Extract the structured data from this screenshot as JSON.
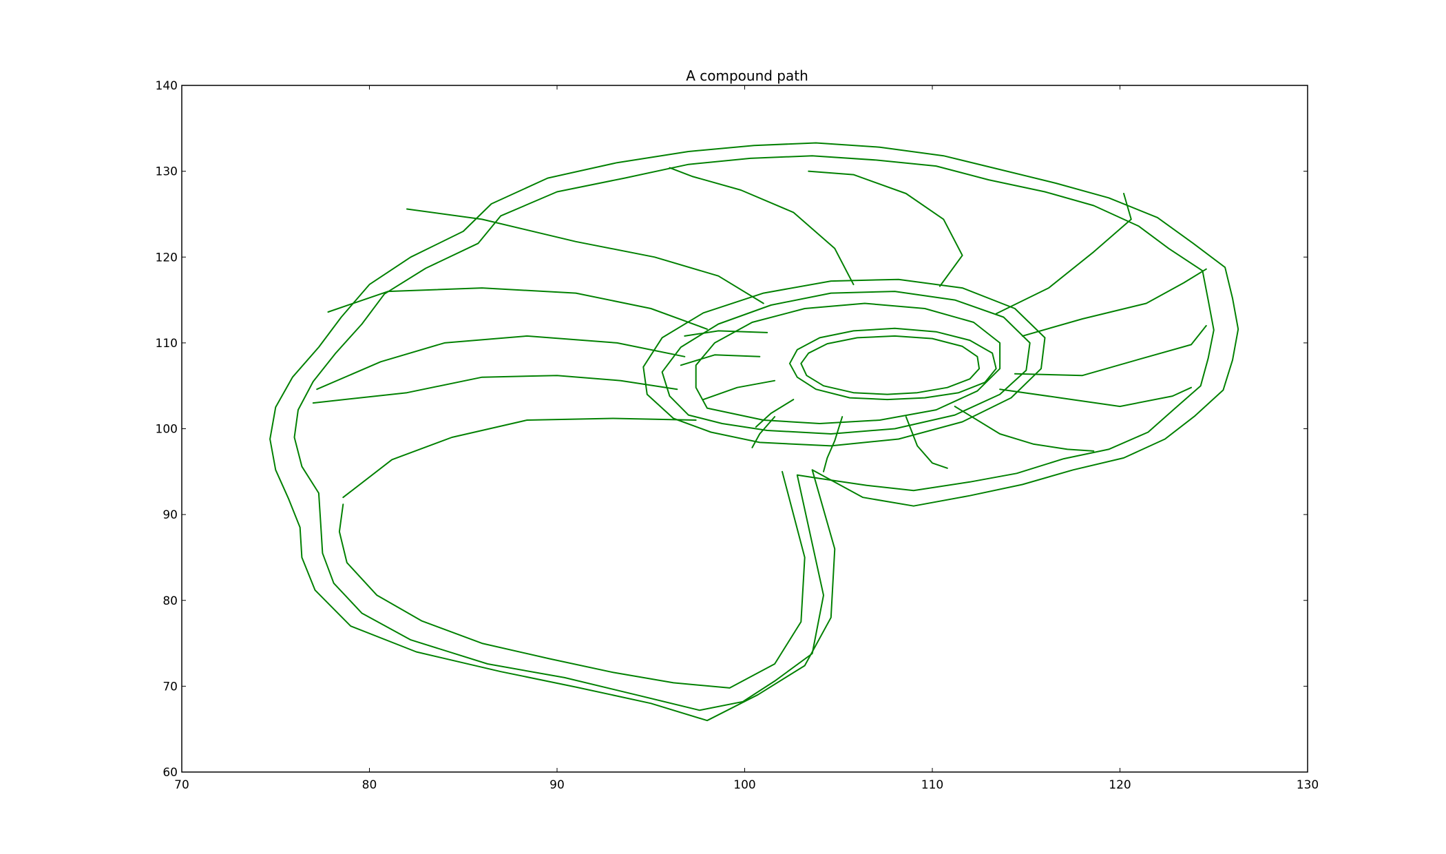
{
  "chart_data": {
    "type": "line",
    "title": "A compound path",
    "xlabel": "",
    "ylabel": "",
    "xlim": [
      70,
      130
    ],
    "ylim": [
      60,
      140
    ],
    "xticks": [
      70,
      80,
      90,
      100,
      110,
      120,
      130
    ],
    "yticks": [
      60,
      70,
      80,
      90,
      100,
      110,
      120,
      130,
      140
    ],
    "grid": false,
    "color": "#008000",
    "series": [
      {
        "points": [
          [
            102.8,
            94.6
          ],
          [
            104.2,
            80.6
          ],
          [
            103.6,
            73.8
          ],
          [
            101.6,
            70.6
          ],
          [
            99.9,
            68.2
          ],
          [
            97.6,
            67.2
          ],
          [
            94.2,
            69.0
          ],
          [
            90.4,
            71.0
          ],
          [
            86.3,
            72.6
          ],
          [
            82.2,
            75.4
          ],
          [
            79.6,
            78.5
          ],
          [
            78.1,
            82.0
          ],
          [
            77.5,
            85.5
          ],
          [
            77.4,
            89.0
          ],
          [
            77.3,
            92.5
          ],
          [
            76.4,
            95.6
          ],
          [
            76.0,
            99.0
          ],
          [
            76.2,
            102.2
          ],
          [
            77.0,
            105.5
          ],
          [
            78.2,
            108.8
          ],
          [
            79.6,
            112.2
          ],
          [
            80.8,
            115.7
          ],
          [
            83.0,
            118.7
          ],
          [
            85.8,
            121.6
          ],
          [
            87.0,
            124.8
          ],
          [
            90.0,
            127.6
          ],
          [
            93.6,
            129.2
          ],
          [
            97.0,
            130.8
          ],
          [
            100.3,
            131.5
          ],
          [
            103.6,
            131.8
          ],
          [
            107.0,
            131.3
          ],
          [
            110.2,
            130.6
          ],
          [
            113.0,
            129.0
          ],
          [
            116.0,
            127.6
          ],
          [
            118.6,
            126.0
          ],
          [
            121.0,
            123.6
          ],
          [
            122.6,
            121.0
          ],
          [
            124.4,
            118.4
          ],
          [
            124.7,
            115.0
          ],
          [
            125.0,
            111.5
          ],
          [
            124.7,
            108.2
          ],
          [
            124.3,
            105.0
          ],
          [
            122.9,
            102.3
          ],
          [
            121.5,
            99.6
          ],
          [
            119.4,
            97.6
          ],
          [
            117.0,
            96.5
          ],
          [
            114.5,
            94.8
          ],
          [
            112.0,
            93.8
          ],
          [
            109.0,
            92.8
          ],
          [
            106.5,
            93.4
          ],
          [
            104.0,
            94.2
          ],
          [
            102.8,
            94.6
          ]
        ]
      },
      {
        "points": [
          [
            103.6,
            95.2
          ],
          [
            104.8,
            86.0
          ],
          [
            104.6,
            78.0
          ],
          [
            103.2,
            72.4
          ],
          [
            100.7,
            69.0
          ],
          [
            98.0,
            66.0
          ],
          [
            95.0,
            68.0
          ],
          [
            91.0,
            69.9
          ],
          [
            87.0,
            71.7
          ],
          [
            82.5,
            74.0
          ],
          [
            79.0,
            77.0
          ],
          [
            77.1,
            81.2
          ],
          [
            76.4,
            85.0
          ],
          [
            76.3,
            88.5
          ],
          [
            75.7,
            91.8
          ],
          [
            75.0,
            95.2
          ],
          [
            74.7,
            98.8
          ],
          [
            75.0,
            102.5
          ],
          [
            75.9,
            106.0
          ],
          [
            77.3,
            109.5
          ],
          [
            78.5,
            113.0
          ],
          [
            80.0,
            116.8
          ],
          [
            82.2,
            120.0
          ],
          [
            85.0,
            123.0
          ],
          [
            86.5,
            126.2
          ],
          [
            89.5,
            129.2
          ],
          [
            93.2,
            131.0
          ],
          [
            97.0,
            132.3
          ],
          [
            100.5,
            133.0
          ],
          [
            103.8,
            133.3
          ],
          [
            107.2,
            132.8
          ],
          [
            110.6,
            131.8
          ],
          [
            113.6,
            130.2
          ],
          [
            116.6,
            128.6
          ],
          [
            119.4,
            126.9
          ],
          [
            122.0,
            124.6
          ],
          [
            123.9,
            121.6
          ],
          [
            125.6,
            118.8
          ],
          [
            126.0,
            115.2
          ],
          [
            126.3,
            111.6
          ],
          [
            126.0,
            108.0
          ],
          [
            125.5,
            104.5
          ],
          [
            124.0,
            101.5
          ],
          [
            122.4,
            98.8
          ],
          [
            120.2,
            96.6
          ],
          [
            117.5,
            95.2
          ],
          [
            114.8,
            93.5
          ],
          [
            112.0,
            92.2
          ],
          [
            109.0,
            91.0
          ],
          [
            106.3,
            92.0
          ],
          [
            103.6,
            95.2
          ]
        ]
      },
      {
        "points": [
          [
            102.0,
            95.0
          ],
          [
            103.2,
            85.0
          ],
          [
            103.0,
            77.5
          ],
          [
            101.6,
            72.6
          ],
          [
            99.2,
            69.8
          ],
          [
            96.2,
            70.4
          ],
          [
            93.0,
            71.6
          ],
          [
            89.6,
            73.2
          ],
          [
            86.0,
            75.0
          ],
          [
            82.8,
            77.6
          ],
          [
            80.4,
            80.6
          ],
          [
            78.8,
            84.4
          ],
          [
            78.4,
            88.0
          ],
          [
            78.6,
            91.2
          ]
        ]
      },
      {
        "points": [
          [
            97.0,
            101.6
          ],
          [
            96.0,
            103.8
          ],
          [
            95.6,
            106.6
          ],
          [
            96.6,
            109.5
          ],
          [
            98.6,
            112.2
          ],
          [
            101.4,
            114.4
          ],
          [
            104.6,
            115.8
          ],
          [
            108.0,
            116.0
          ],
          [
            111.2,
            115.0
          ],
          [
            113.8,
            113.0
          ],
          [
            115.2,
            110.0
          ],
          [
            115.0,
            106.8
          ],
          [
            113.6,
            104.0
          ],
          [
            111.2,
            101.6
          ],
          [
            108.0,
            100.0
          ],
          [
            104.6,
            99.4
          ],
          [
            101.2,
            99.8
          ],
          [
            98.8,
            100.6
          ],
          [
            97.0,
            101.6
          ]
        ]
      },
      {
        "points": [
          [
            96.2,
            101.2
          ],
          [
            94.8,
            104.0
          ],
          [
            94.6,
            107.2
          ],
          [
            95.6,
            110.6
          ],
          [
            97.8,
            113.5
          ],
          [
            101.0,
            115.8
          ],
          [
            104.6,
            117.2
          ],
          [
            108.2,
            117.4
          ],
          [
            111.6,
            116.4
          ],
          [
            114.4,
            114.0
          ],
          [
            116.0,
            110.6
          ],
          [
            115.8,
            107.0
          ],
          [
            114.2,
            103.6
          ],
          [
            111.6,
            100.8
          ],
          [
            108.2,
            98.8
          ],
          [
            104.6,
            98.0
          ],
          [
            100.8,
            98.4
          ],
          [
            98.2,
            99.6
          ],
          [
            96.2,
            101.2
          ]
        ]
      },
      {
        "points": [
          [
            98.0,
            102.4
          ],
          [
            97.4,
            104.8
          ],
          [
            97.4,
            107.4
          ],
          [
            98.4,
            110.0
          ],
          [
            100.4,
            112.4
          ],
          [
            103.2,
            114.0
          ],
          [
            106.4,
            114.6
          ],
          [
            109.6,
            114.0
          ],
          [
            112.2,
            112.4
          ],
          [
            113.6,
            110.0
          ],
          [
            113.6,
            107.0
          ],
          [
            112.4,
            104.4
          ],
          [
            110.2,
            102.2
          ],
          [
            107.2,
            101.0
          ],
          [
            104.0,
            100.6
          ],
          [
            101.0,
            101.0
          ],
          [
            98.0,
            102.4
          ]
        ]
      },
      {
        "points": [
          [
            102.4,
            107.6
          ],
          [
            102.8,
            109.2
          ],
          [
            104.0,
            110.6
          ],
          [
            105.8,
            111.4
          ],
          [
            108.0,
            111.7
          ],
          [
            110.2,
            111.3
          ],
          [
            112.0,
            110.3
          ],
          [
            113.2,
            108.8
          ],
          [
            113.4,
            107.0
          ],
          [
            112.8,
            105.4
          ],
          [
            111.4,
            104.2
          ],
          [
            109.6,
            103.6
          ],
          [
            107.6,
            103.4
          ],
          [
            105.6,
            103.6
          ],
          [
            103.8,
            104.6
          ],
          [
            102.8,
            106.0
          ],
          [
            102.4,
            107.6
          ]
        ]
      },
      {
        "points": [
          [
            103.0,
            107.6
          ],
          [
            103.4,
            108.8
          ],
          [
            104.4,
            109.9
          ],
          [
            106.0,
            110.6
          ],
          [
            108.0,
            110.8
          ],
          [
            110.0,
            110.5
          ],
          [
            111.6,
            109.6
          ],
          [
            112.4,
            108.4
          ],
          [
            112.5,
            107.0
          ],
          [
            112.0,
            105.8
          ],
          [
            110.8,
            104.8
          ],
          [
            109.2,
            104.2
          ],
          [
            107.6,
            104.0
          ],
          [
            105.8,
            104.2
          ],
          [
            104.2,
            105.0
          ],
          [
            103.3,
            106.2
          ],
          [
            103.0,
            107.6
          ]
        ]
      },
      {
        "points": [
          [
            97.4,
            101.0
          ],
          [
            93.0,
            101.2
          ],
          [
            88.4,
            101.0
          ],
          [
            84.4,
            99.0
          ],
          [
            81.2,
            96.4
          ],
          [
            78.6,
            92.0
          ]
        ]
      },
      {
        "points": [
          [
            96.4,
            104.6
          ],
          [
            93.4,
            105.6
          ],
          [
            90.0,
            106.2
          ],
          [
            86.0,
            106.0
          ],
          [
            82.0,
            104.2
          ],
          [
            77.0,
            103.0
          ]
        ]
      },
      {
        "points": [
          [
            96.8,
            108.4
          ],
          [
            93.2,
            110.0
          ],
          [
            88.4,
            110.8
          ],
          [
            84.0,
            110.0
          ],
          [
            80.6,
            107.8
          ],
          [
            77.2,
            104.6
          ]
        ]
      },
      {
        "points": [
          [
            98.0,
            111.6
          ],
          [
            95.0,
            114.0
          ],
          [
            91.0,
            115.8
          ],
          [
            86.0,
            116.4
          ],
          [
            81.0,
            116.0
          ],
          [
            77.8,
            113.6
          ]
        ]
      },
      {
        "points": [
          [
            101.0,
            114.6
          ],
          [
            98.6,
            117.8
          ],
          [
            95.2,
            120.0
          ],
          [
            91.0,
            121.8
          ],
          [
            86.0,
            124.4
          ],
          [
            82.0,
            125.6
          ]
        ]
      },
      {
        "points": [
          [
            105.8,
            116.8
          ],
          [
            104.8,
            121.0
          ],
          [
            102.6,
            125.2
          ],
          [
            99.8,
            127.8
          ],
          [
            97.2,
            129.4
          ],
          [
            96.0,
            130.4
          ]
        ]
      },
      {
        "points": [
          [
            110.4,
            116.6
          ],
          [
            111.6,
            120.2
          ],
          [
            110.6,
            124.4
          ],
          [
            108.6,
            127.4
          ],
          [
            105.8,
            129.6
          ],
          [
            103.4,
            130.0
          ]
        ]
      },
      {
        "points": [
          [
            113.4,
            113.4
          ],
          [
            116.2,
            116.4
          ],
          [
            118.6,
            120.6
          ],
          [
            120.6,
            124.4
          ],
          [
            120.2,
            127.4
          ]
        ]
      },
      {
        "points": [
          [
            114.8,
            110.8
          ],
          [
            118.0,
            112.8
          ],
          [
            121.4,
            114.6
          ],
          [
            123.4,
            117.0
          ],
          [
            124.6,
            118.6
          ]
        ]
      },
      {
        "points": [
          [
            114.4,
            106.4
          ],
          [
            118.0,
            106.2
          ],
          [
            121.2,
            108.2
          ],
          [
            123.8,
            109.8
          ],
          [
            124.6,
            112.0
          ]
        ]
      },
      {
        "points": [
          [
            113.6,
            104.6
          ],
          [
            116.8,
            103.6
          ],
          [
            120.0,
            102.6
          ],
          [
            122.8,
            103.8
          ],
          [
            123.8,
            104.8
          ]
        ]
      },
      {
        "points": [
          [
            111.2,
            102.6
          ],
          [
            113.6,
            99.4
          ],
          [
            115.4,
            98.2
          ],
          [
            117.2,
            97.6
          ],
          [
            118.6,
            97.4
          ]
        ]
      },
      {
        "points": [
          [
            108.6,
            101.4
          ],
          [
            109.2,
            98.0
          ],
          [
            110.0,
            96.0
          ],
          [
            110.8,
            95.4
          ]
        ]
      },
      {
        "points": [
          [
            105.2,
            101.4
          ],
          [
            104.8,
            98.6
          ],
          [
            104.4,
            96.6
          ],
          [
            104.2,
            95.0
          ]
        ]
      },
      {
        "points": [
          [
            101.6,
            101.4
          ],
          [
            100.8,
            99.4
          ],
          [
            100.4,
            97.8
          ]
        ]
      },
      {
        "points": [
          [
            101.2,
            111.2
          ],
          [
            98.6,
            111.4
          ],
          [
            96.8,
            110.8
          ]
        ]
      },
      {
        "points": [
          [
            100.8,
            108.4
          ],
          [
            98.4,
            108.6
          ],
          [
            96.6,
            107.4
          ]
        ]
      },
      {
        "points": [
          [
            101.6,
            105.6
          ],
          [
            99.6,
            104.8
          ],
          [
            97.8,
            103.4
          ]
        ]
      },
      {
        "points": [
          [
            102.6,
            103.4
          ],
          [
            101.4,
            101.8
          ],
          [
            100.6,
            100.2
          ]
        ]
      }
    ]
  }
}
